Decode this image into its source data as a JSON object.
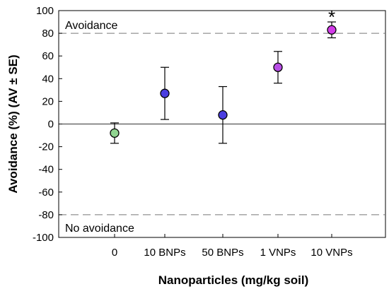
{
  "chart_data": {
    "type": "scatter",
    "title": "",
    "xlabel": "Nanoparticles (mg/kg soil)",
    "ylabel": "Avoidance (%) (AV ± SE)",
    "ylim": [
      -100,
      100
    ],
    "yticks": [
      -100,
      -80,
      -60,
      -40,
      -20,
      0,
      20,
      40,
      60,
      80,
      100
    ],
    "categories": [
      "0",
      "10 BNPs",
      "50 BNPs",
      "1 VNPs",
      "10 VNPs"
    ],
    "values": [
      -8,
      27,
      8,
      50,
      83
    ],
    "errors": [
      9,
      23,
      25,
      14,
      7
    ],
    "point_colors": [
      "#90d590",
      "#4a3de0",
      "#4a3de0",
      "#b84ee6",
      "#d23be8"
    ],
    "reference_lines": [
      {
        "y": 80,
        "style": "dashed",
        "label": "Avoidance"
      },
      {
        "y": -80,
        "style": "dashed",
        "label": "No avoidance"
      },
      {
        "y": 0,
        "style": "solid"
      }
    ],
    "significance": [
      {
        "category": "10 VNPs",
        "marker": "*"
      }
    ],
    "grid": false,
    "legend": "none"
  }
}
